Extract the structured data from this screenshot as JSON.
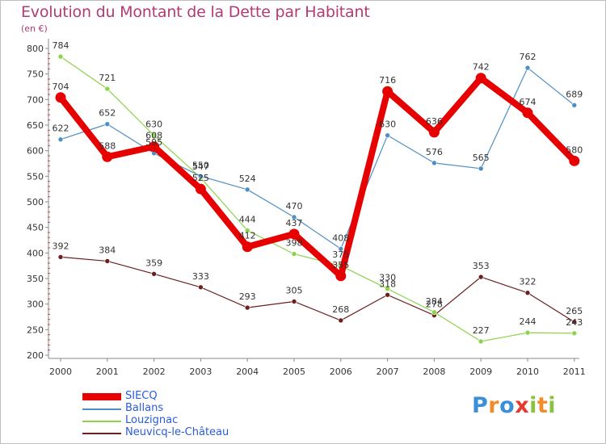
{
  "title": "Evolution du Montant de la Dette par Habitant",
  "subtitle": "(en €)",
  "brand": {
    "letters": [
      "P",
      "r",
      "o",
      "x",
      "i",
      "t",
      "i"
    ],
    "colors": [
      "#3b8fd6",
      "#f28c28",
      "#3b8fd6",
      "#e8392f",
      "#88c23f",
      "#f28c28",
      "#88c23f"
    ]
  },
  "chart_data": {
    "type": "line",
    "title": "Evolution du Montant de la Dette par Habitant",
    "ylabel": "(en €)",
    "xlabel": "",
    "x": [
      "2000",
      "2001",
      "2002",
      "2003",
      "2004",
      "2005",
      "2006",
      "2007",
      "2008",
      "2009",
      "2010",
      "2011"
    ],
    "ylim": [
      200,
      800
    ],
    "yticks": [
      "200",
      "250",
      "300",
      "350",
      "400",
      "450",
      "500",
      "550",
      "600",
      "650",
      "700",
      "750",
      "800"
    ],
    "grid": false,
    "legend_position": "bottom-left",
    "series": [
      {
        "name": "SIECQ",
        "color": "#e60000",
        "values": [
          704,
          588,
          608,
          525,
          412,
          437,
          355,
          716,
          636,
          742,
          674,
          580
        ]
      },
      {
        "name": "Ballans",
        "color": "#4f8ec4",
        "values": [
          622,
          652,
          595,
          550,
          524,
          470,
          408,
          630,
          576,
          565,
          762,
          689
        ]
      },
      {
        "name": "Louzignac",
        "color": "#8cd34a",
        "values": [
          784,
          721,
          630,
          547,
          444,
          398,
          375,
          330,
          284,
          227,
          244,
          243
        ]
      },
      {
        "name": "Neuvicq-le-Château",
        "color": "#6b1f1f",
        "values": [
          392,
          384,
          359,
          333,
          293,
          305,
          268,
          318,
          278,
          353,
          322,
          265
        ]
      }
    ]
  }
}
